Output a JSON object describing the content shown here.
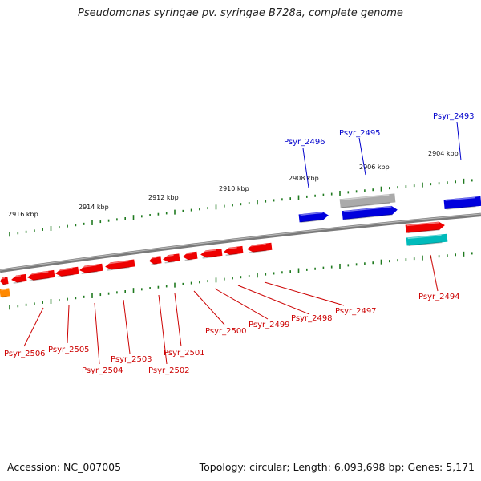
{
  "title": "Pseudomonas syringae pv. syringae B728a, complete genome",
  "footer": {
    "accession": "Accession: NC_007005",
    "summary": "Topology: circular; Length: 6,093,698 bp; Genes: 5,171"
  },
  "colors": {
    "backbone": "#8a8a8a",
    "tick": "#1f7a1f",
    "red_gene": "#ee0000",
    "blue_gene": "#0000dd",
    "gray_gene": "#aaaaaa",
    "cyan_gene": "#00bbbb",
    "orange_gene": "#ff8800",
    "red_label": "#cc0000",
    "blue_label": "#0000cc"
  },
  "scale_ticks": [
    "2916 kbp",
    "2914 kbp",
    "2912 kbp",
    "2910 kbp",
    "2908 kbp",
    "2906 kbp",
    "2904 kbp"
  ],
  "genes": [
    "Psyr_2493",
    "Psyr_2494",
    "Psyr_2495",
    "Psyr_2496",
    "Psyr_2497",
    "Psyr_2498",
    "Psyr_2499",
    "Psyr_2500",
    "Psyr_2501",
    "Psyr_2502",
    "Psyr_2503",
    "Psyr_2504",
    "Psyr_2505",
    "Psyr_2506"
  ]
}
